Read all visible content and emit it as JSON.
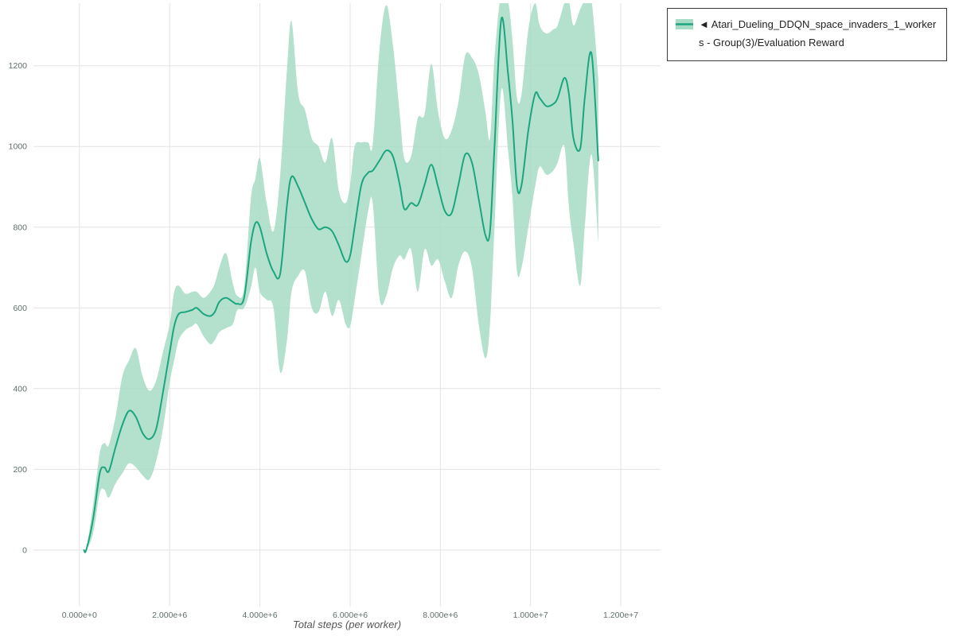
{
  "legend": {
    "collapse_icon": "◄",
    "label": "Atari_Dueling_DDQN_space_invaders_1_workers - Group(3)/Evaluation Reward"
  },
  "chart_data": {
    "type": "line",
    "title": "",
    "xlabel": "Total steps (per worker)",
    "ylabel": "",
    "legend_position": "top-right",
    "grid": true,
    "x_unit_steps": 1000000,
    "xlim_millions": [
      -1.02,
      12.88
    ],
    "ylim": [
      -140,
      1355
    ],
    "x_ticks_millions": [
      0,
      2,
      4,
      6,
      8,
      10,
      12
    ],
    "x_tick_labels": [
      "0.000e+0",
      "2.000e+6",
      "4.000e+6",
      "6.000e+6",
      "8.000e+6",
      "1.000e+7",
      "1.200e+7"
    ],
    "y_ticks": [
      0,
      200,
      400,
      600,
      800,
      1000,
      1200
    ],
    "colors": {
      "line": "#1ca57f",
      "band": "#a6dcc6",
      "grid": "#e3e3e3",
      "tick_text": "#5f6f68",
      "axis_label": "#555555",
      "legend_border": "#3a3a3a"
    },
    "series": [
      {
        "name": "Atari_Dueling_DDQN_space_invaders_1_workers - Group(3)/Evaluation Reward",
        "x_millions": [
          0.1,
          0.15,
          0.3,
          0.45,
          0.55,
          0.65,
          0.8,
          0.95,
          1.1,
          1.25,
          1.4,
          1.55,
          1.7,
          1.85,
          2.0,
          2.1,
          2.2,
          2.35,
          2.5,
          2.6,
          2.75,
          2.9,
          3.0,
          3.1,
          3.25,
          3.4,
          3.5,
          3.65,
          3.8,
          3.9,
          4.0,
          4.15,
          4.3,
          4.45,
          4.6,
          4.7,
          4.85,
          5.0,
          5.15,
          5.3,
          5.45,
          5.6,
          5.75,
          5.9,
          6.0,
          6.1,
          6.25,
          6.4,
          6.5,
          6.65,
          6.8,
          6.95,
          7.1,
          7.2,
          7.35,
          7.5,
          7.65,
          7.8,
          7.95,
          8.1,
          8.25,
          8.4,
          8.55,
          8.7,
          8.85,
          9.0,
          9.1,
          9.2,
          9.35,
          9.5,
          9.6,
          9.7,
          9.8,
          9.95,
          10.1,
          10.2,
          10.35,
          10.5,
          10.6,
          10.75,
          10.85,
          10.95,
          11.1,
          11.2,
          11.35,
          11.5
        ],
        "mean": [
          0,
          0,
          75,
          190,
          205,
          195,
          255,
          310,
          345,
          330,
          290,
          275,
          300,
          390,
          490,
          555,
          585,
          590,
          595,
          600,
          585,
          580,
          590,
          615,
          625,
          615,
          610,
          625,
          760,
          810,
          800,
          735,
          690,
          685,
          855,
          925,
          900,
          860,
          820,
          795,
          800,
          790,
          755,
          715,
          730,
          800,
          905,
          935,
          940,
          965,
          990,
          975,
          905,
          845,
          860,
          855,
          905,
          955,
          900,
          840,
          835,
          905,
          980,
          960,
          870,
          780,
          790,
          1000,
          1315,
          1180,
          1060,
          900,
          905,
          1040,
          1130,
          1120,
          1100,
          1105,
          1120,
          1170,
          1130,
          1020,
          995,
          1120,
          1230,
          965
        ],
        "band_low": [
          0,
          0,
          40,
          140,
          150,
          130,
          165,
          190,
          215,
          205,
          185,
          175,
          220,
          300,
          415,
          470,
          520,
          545,
          555,
          560,
          530,
          510,
          520,
          540,
          550,
          560,
          595,
          600,
          650,
          700,
          640,
          620,
          600,
          440,
          520,
          640,
          680,
          690,
          600,
          590,
          640,
          580,
          620,
          560,
          555,
          620,
          730,
          840,
          860,
          625,
          630,
          700,
          730,
          720,
          745,
          640,
          745,
          705,
          720,
          665,
          625,
          705,
          740,
          700,
          560,
          475,
          560,
          800,
          1140,
          990,
          870,
          690,
          700,
          800,
          900,
          950,
          930,
          940,
          960,
          1000,
          850,
          760,
          655,
          800,
          980,
          760
        ],
        "band_high": [
          0,
          0,
          110,
          240,
          265,
          260,
          330,
          430,
          470,
          500,
          430,
          395,
          420,
          490,
          560,
          640,
          655,
          635,
          640,
          640,
          625,
          640,
          660,
          700,
          735,
          660,
          630,
          650,
          870,
          920,
          970,
          860,
          790,
          930,
          1190,
          1310,
          1130,
          1090,
          1020,
          1000,
          960,
          1020,
          890,
          860,
          905,
          1000,
          1010,
          1010,
          1005,
          1240,
          1350,
          1250,
          1080,
          970,
          975,
          1070,
          1080,
          1205,
          1085,
          1020,
          1040,
          1110,
          1225,
          1220,
          1180,
          1085,
          1020,
          1220,
          1380,
          1360,
          1260,
          1120,
          1130,
          1290,
          1355,
          1300,
          1280,
          1290,
          1300,
          1355,
          1360,
          1300,
          1340,
          1360,
          1360,
          1170
        ]
      }
    ]
  }
}
